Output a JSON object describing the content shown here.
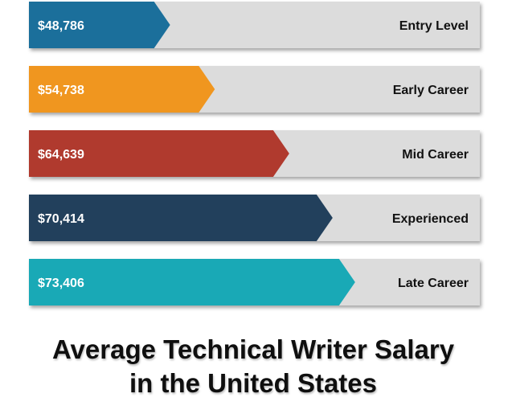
{
  "chart_data": {
    "type": "bar",
    "orientation": "horizontal",
    "title_lines": [
      "Average Technical Writer Salary",
      "in the United States"
    ],
    "categories": [
      "Entry Level",
      "Early Career",
      "Mid Career",
      "Experienced",
      "Late Career"
    ],
    "values": [
      48786,
      54738,
      64639,
      70414,
      73406
    ],
    "value_labels": [
      "$48,786",
      "$54,738",
      "$64,639",
      "$70,414",
      "$73,406"
    ],
    "colors": [
      "#1b6f9b",
      "#f0961f",
      "#b03a2e",
      "#22405c",
      "#19a9b6"
    ],
    "track_color": "#dcdcdc",
    "xlim": [
      30000,
      90000
    ],
    "grid": false,
    "legend": "none"
  }
}
